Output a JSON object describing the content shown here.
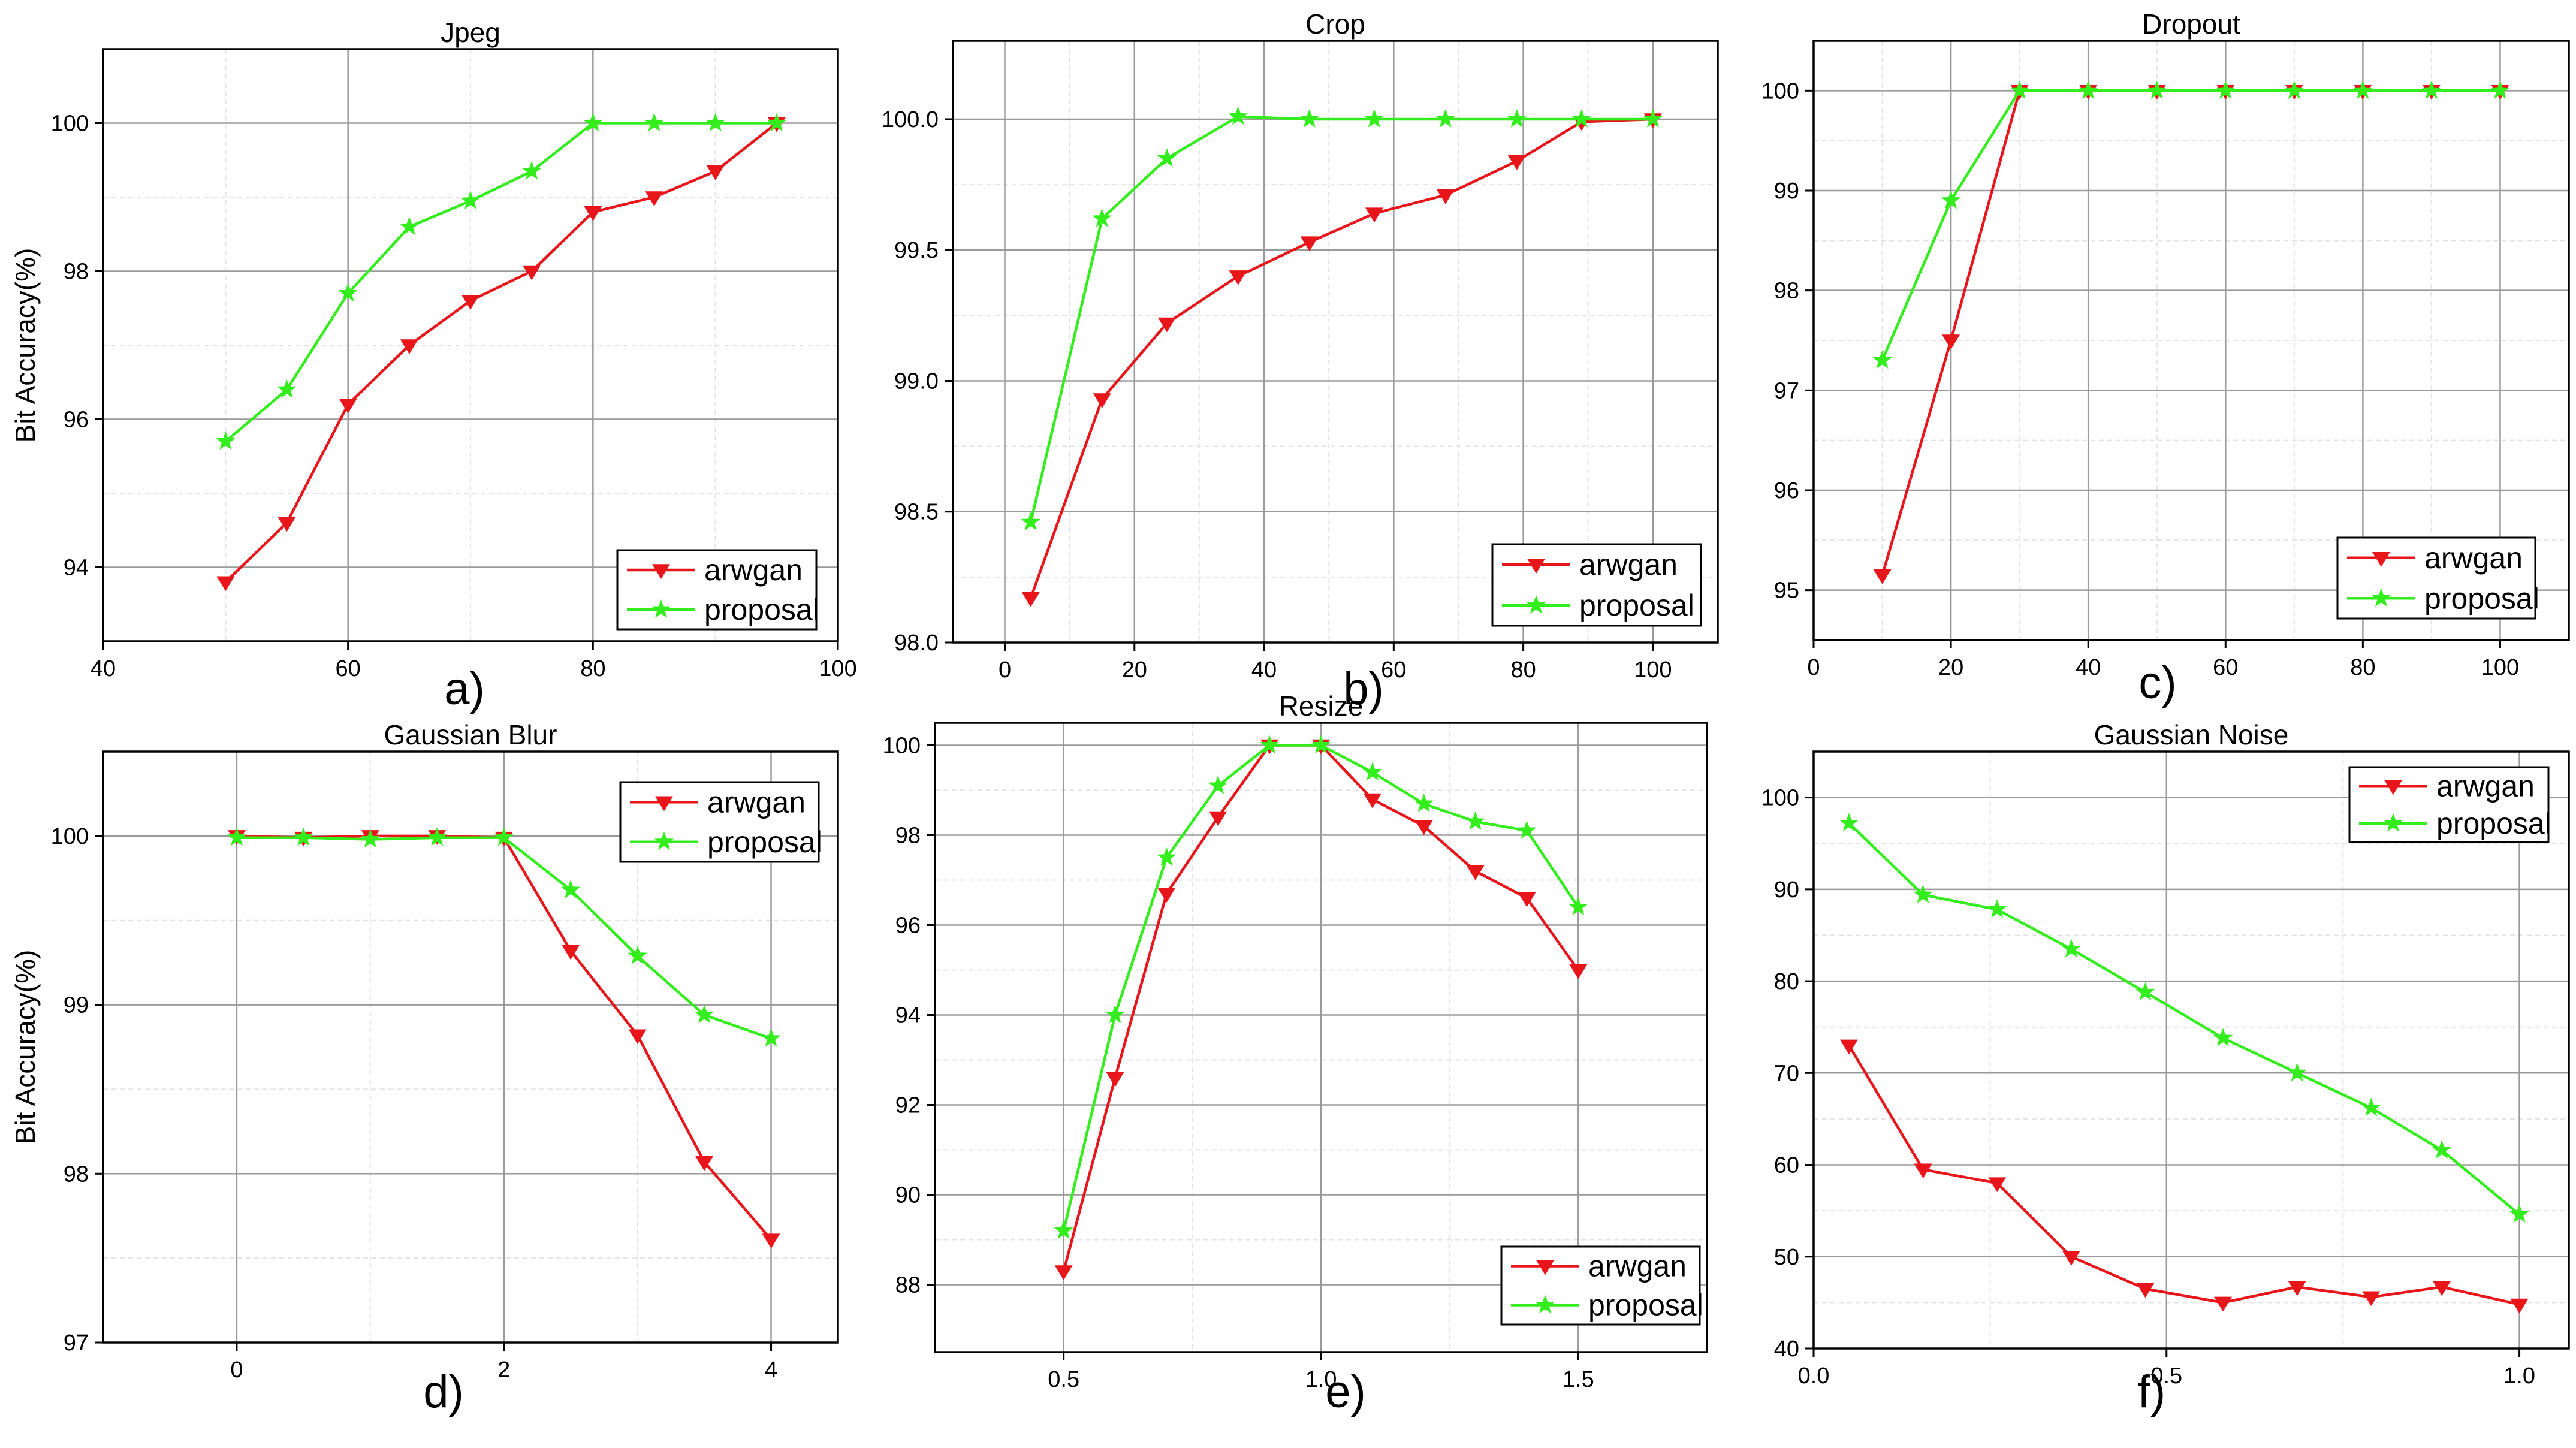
{
  "colors": {
    "arwgan": "#e8161b",
    "proposal": "#33ee1c",
    "grid_major": "#9a9a9a",
    "grid_minor": "#e2e2e2"
  },
  "chart_data": [
    {
      "type": "line",
      "panel": "a)",
      "title": "Jpeg",
      "xlabel": "",
      "ylabel": "Bit Accuracy(%)",
      "xlim": [
        40,
        100
      ],
      "ylim": [
        93,
        101
      ],
      "xticks": [
        40,
        60,
        80,
        100
      ],
      "yticks": [
        94,
        96,
        98,
        100
      ],
      "legend": "bottom-right",
      "series": [
        {
          "name": "arwgan",
          "x": [
            50,
            55,
            60,
            65,
            70,
            75,
            80,
            85,
            90,
            95
          ],
          "values": [
            93.8,
            94.6,
            96.2,
            97.0,
            97.6,
            98.0,
            98.8,
            99.0,
            99.35,
            100.0
          ]
        },
        {
          "name": "proposal",
          "x": [
            50,
            55,
            60,
            65,
            70,
            75,
            80,
            85,
            90,
            95
          ],
          "values": [
            95.7,
            96.4,
            97.7,
            98.6,
            98.95,
            99.35,
            100.0,
            100.0,
            100.0,
            100.0
          ]
        }
      ]
    },
    {
      "type": "line",
      "panel": "b)",
      "title": "Crop",
      "xlabel": "",
      "ylabel": "",
      "xlim": [
        -8,
        110
      ],
      "ylim": [
        98.0,
        100.3
      ],
      "xticks": [
        0,
        20,
        40,
        60,
        80,
        100
      ],
      "yticks": [
        98.0,
        98.5,
        99.0,
        99.5,
        100.0
      ],
      "legend": "bottom-right",
      "series": [
        {
          "name": "arwgan",
          "x": [
            4,
            15,
            25,
            36,
            47,
            57,
            68,
            79,
            89,
            100
          ],
          "values": [
            98.17,
            98.93,
            99.22,
            99.4,
            99.53,
            99.64,
            99.71,
            99.84,
            99.99,
            100.0
          ]
        },
        {
          "name": "proposal",
          "x": [
            4,
            15,
            25,
            36,
            47,
            57,
            68,
            79,
            89,
            100
          ],
          "values": [
            98.46,
            99.62,
            99.85,
            100.01,
            100.0,
            100.0,
            100.0,
            100.0,
            100.0,
            100.0
          ]
        }
      ]
    },
    {
      "type": "line",
      "panel": "c)",
      "title": "Dropout",
      "xlabel": "",
      "ylabel": "",
      "xlim": [
        0,
        110
      ],
      "ylim": [
        94.5,
        100.5
      ],
      "xticks": [
        0,
        20,
        40,
        60,
        80,
        100
      ],
      "yticks": [
        95,
        96,
        97,
        98,
        99,
        100
      ],
      "legend": "bottom-right",
      "series": [
        {
          "name": "arwgan",
          "x": [
            10,
            20,
            30,
            40,
            50,
            60,
            70,
            80,
            90,
            100
          ],
          "values": [
            95.15,
            97.5,
            100,
            100,
            100,
            100,
            100,
            100,
            100,
            100
          ]
        },
        {
          "name": "proposal",
          "x": [
            10,
            20,
            30,
            40,
            50,
            60,
            70,
            80,
            90,
            100
          ],
          "values": [
            97.3,
            98.9,
            100,
            100,
            100,
            100,
            100,
            100,
            100,
            100
          ]
        }
      ]
    },
    {
      "type": "line",
      "panel": "d)",
      "title": "Gaussian Blur",
      "xlabel": "",
      "ylabel": "Bit Accuracy(%)",
      "xlim": [
        -1,
        4.5
      ],
      "ylim": [
        97,
        100.5
      ],
      "xticks": [
        0,
        2,
        4
      ],
      "yticks": [
        97,
        98,
        99,
        100
      ],
      "legend": "top-right",
      "series": [
        {
          "name": "arwgan",
          "x": [
            0,
            0.5,
            1,
            1.5,
            2,
            2.5,
            3,
            3.5,
            4
          ],
          "values": [
            100,
            99.99,
            100,
            100,
            99.99,
            99.32,
            98.82,
            98.07,
            97.61
          ]
        },
        {
          "name": "proposal",
          "x": [
            0,
            0.5,
            1,
            1.5,
            2,
            2.5,
            3,
            3.5,
            4
          ],
          "values": [
            99.99,
            99.99,
            99.98,
            99.99,
            99.99,
            99.68,
            99.29,
            98.94,
            98.8
          ]
        }
      ]
    },
    {
      "type": "line",
      "panel": "e)",
      "title": "Resize",
      "xlabel": "",
      "ylabel": "",
      "xlim": [
        0.25,
        1.75
      ],
      "ylim": [
        86.5,
        100.5
      ],
      "xticks": [
        0.5,
        1.0,
        1.5
      ],
      "yticks": [
        88,
        90,
        92,
        94,
        96,
        98,
        100
      ],
      "legend": "bottom-right",
      "series": [
        {
          "name": "arwgan",
          "x": [
            0.5,
            0.6,
            0.7,
            0.8,
            0.9,
            1.0,
            1.1,
            1.2,
            1.3,
            1.4,
            1.5
          ],
          "values": [
            88.3,
            92.6,
            96.7,
            98.4,
            100.0,
            100.0,
            98.8,
            98.2,
            97.2,
            96.6,
            95.0
          ]
        },
        {
          "name": "proposal",
          "x": [
            0.5,
            0.6,
            0.7,
            0.8,
            0.9,
            1.0,
            1.1,
            1.2,
            1.3,
            1.4,
            1.5
          ],
          "values": [
            89.2,
            94.0,
            97.5,
            99.1,
            100.0,
            100.0,
            99.4,
            98.7,
            98.3,
            98.1,
            96.4
          ]
        }
      ]
    },
    {
      "type": "line",
      "panel": "f)",
      "title": "Gaussian Noise",
      "xlabel": "",
      "ylabel": "",
      "xlim": [
        0,
        1.07
      ],
      "ylim": [
        40,
        105
      ],
      "xticks": [
        0.0,
        0.5,
        1.0
      ],
      "yticks": [
        40,
        50,
        60,
        70,
        80,
        90,
        100
      ],
      "legend": "top-right",
      "series": [
        {
          "name": "arwgan",
          "x": [
            0.05,
            0.155,
            0.26,
            0.365,
            0.47,
            0.58,
            0.685,
            0.79,
            0.89,
            1.0
          ],
          "values": [
            73,
            59.5,
            58,
            50,
            46.5,
            45,
            46.7,
            45.6,
            46.7,
            44.8
          ]
        },
        {
          "name": "proposal",
          "x": [
            0.05,
            0.155,
            0.26,
            0.365,
            0.47,
            0.58,
            0.685,
            0.79,
            0.89,
            1.0
          ],
          "values": [
            97.2,
            89.4,
            87.8,
            83.5,
            78.8,
            73.8,
            70,
            66.2,
            61.6,
            54.6
          ]
        }
      ]
    }
  ]
}
